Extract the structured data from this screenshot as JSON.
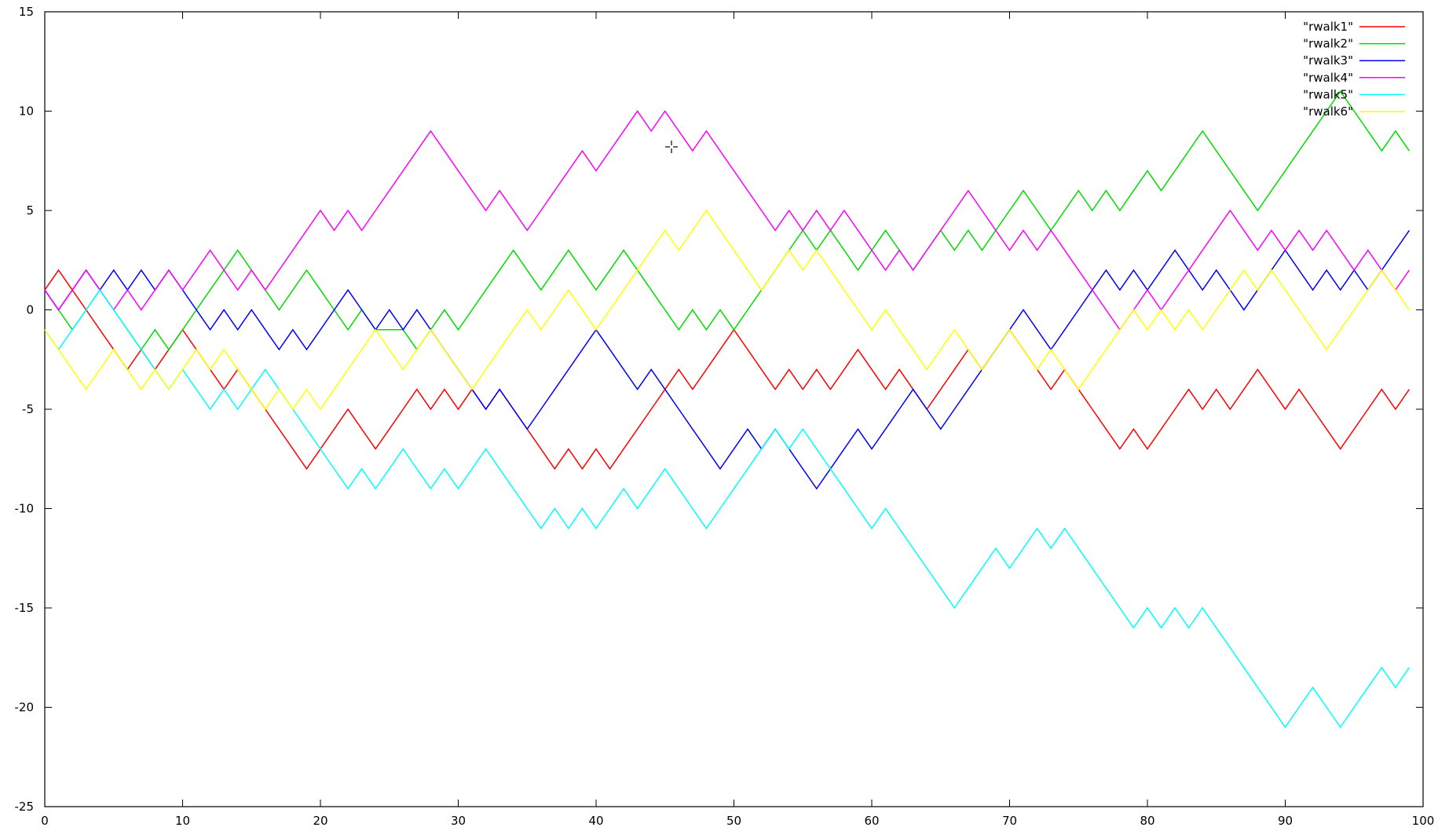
{
  "chart_data": {
    "type": "line",
    "title": "",
    "xlabel": "",
    "ylabel": "",
    "xlim": [
      0,
      100
    ],
    "ylim": [
      -25,
      15
    ],
    "xticks": [
      0,
      10,
      20,
      30,
      40,
      50,
      60,
      70,
      80,
      90,
      100
    ],
    "yticks": [
      -25,
      -20,
      -15,
      -10,
      -5,
      0,
      5,
      10,
      15
    ],
    "grid": false,
    "legend_position": "top-right",
    "x": [
      0,
      1,
      2,
      3,
      4,
      5,
      6,
      7,
      8,
      9,
      10,
      11,
      12,
      13,
      14,
      15,
      16,
      17,
      18,
      19,
      20,
      21,
      22,
      23,
      24,
      25,
      26,
      27,
      28,
      29,
      30,
      31,
      32,
      33,
      34,
      35,
      36,
      37,
      38,
      39,
      40,
      41,
      42,
      43,
      44,
      45,
      46,
      47,
      48,
      49,
      50,
      51,
      52,
      53,
      54,
      55,
      56,
      57,
      58,
      59,
      60,
      61,
      62,
      63,
      64,
      65,
      66,
      67,
      68,
      69,
      70,
      71,
      72,
      73,
      74,
      75,
      76,
      77,
      78,
      79,
      80,
      81,
      82,
      83,
      84,
      85,
      86,
      87,
      88,
      89,
      90,
      91,
      92,
      93,
      94,
      95,
      96,
      97,
      98,
      99
    ],
    "series": [
      {
        "name": "\"rwalk1\"",
        "color": "#ff0000",
        "values": [
          1,
          2,
          1,
          0,
          -1,
          -2,
          -3,
          -2,
          -3,
          -2,
          -1,
          -2,
          -3,
          -4,
          -3,
          -4,
          -5,
          -6,
          -7,
          -8,
          -7,
          -6,
          -5,
          -6,
          -7,
          -6,
          -5,
          -4,
          -5,
          -4,
          -5,
          -4,
          -5,
          -4,
          -5,
          -6,
          -7,
          -8,
          -7,
          -8,
          -7,
          -8,
          -7,
          -6,
          -5,
          -4,
          -3,
          -4,
          -3,
          -2,
          -1,
          -2,
          -3,
          -4,
          -3,
          -4,
          -3,
          -4,
          -3,
          -2,
          -3,
          -4,
          -3,
          -4,
          -5,
          -4,
          -3,
          -2,
          -3,
          -2,
          -1,
          -2,
          -3,
          -4,
          -3,
          -4,
          -5,
          -6,
          -7,
          -6,
          -7,
          -6,
          -5,
          -4,
          -5,
          -4,
          -5,
          -4,
          -3,
          -4,
          -5,
          -4,
          -5,
          -6,
          -7,
          -6,
          -5,
          -4,
          -5,
          -4
        ]
      },
      {
        "name": "\"rwalk2\"",
        "color": "#00dd00",
        "values": [
          1,
          0,
          -1,
          0,
          1,
          0,
          -1,
          -2,
          -1,
          -2,
          -1,
          0,
          1,
          2,
          3,
          2,
          1,
          0,
          1,
          2,
          1,
          0,
          -1,
          0,
          -1,
          -1,
          -1,
          -2,
          -1,
          0,
          -1,
          0,
          1,
          2,
          3,
          2,
          1,
          2,
          3,
          2,
          1,
          2,
          3,
          2,
          1,
          0,
          -1,
          0,
          -1,
          0,
          -1,
          0,
          1,
          2,
          3,
          4,
          3,
          4,
          3,
          2,
          3,
          4,
          3,
          2,
          3,
          4,
          3,
          4,
          3,
          4,
          5,
          6,
          5,
          4,
          5,
          6,
          5,
          6,
          5,
          6,
          7,
          6,
          7,
          8,
          9,
          8,
          7,
          6,
          5,
          6,
          7,
          8,
          9,
          10,
          11,
          10,
          9,
          8,
          9,
          8
        ]
      },
      {
        "name": "\"rwalk3\"",
        "color": "#0000ff",
        "values": [
          1,
          0,
          1,
          2,
          1,
          2,
          1,
          2,
          1,
          2,
          1,
          0,
          -1,
          0,
          -1,
          0,
          -1,
          -2,
          -1,
          -2,
          -1,
          0,
          1,
          0,
          -1,
          0,
          -1,
          0,
          -1,
          -2,
          -3,
          -4,
          -5,
          -4,
          -5,
          -6,
          -5,
          -4,
          -3,
          -2,
          -1,
          -2,
          -3,
          -4,
          -3,
          -4,
          -5,
          -6,
          -7,
          -8,
          -7,
          -6,
          -7,
          -6,
          -7,
          -8,
          -9,
          -8,
          -7,
          -6,
          -7,
          -6,
          -5,
          -4,
          -5,
          -6,
          -5,
          -4,
          -3,
          -2,
          -1,
          0,
          -1,
          -2,
          -1,
          0,
          1,
          2,
          1,
          2,
          1,
          2,
          3,
          2,
          1,
          2,
          1,
          0,
          1,
          2,
          3,
          2,
          1,
          2,
          1,
          2,
          1,
          2,
          3,
          4
        ]
      },
      {
        "name": "\"rwalk4\"",
        "color": "#ff00ff",
        "values": [
          1,
          0,
          1,
          2,
          1,
          0,
          1,
          0,
          1,
          2,
          1,
          2,
          3,
          2,
          1,
          2,
          1,
          2,
          3,
          4,
          5,
          4,
          5,
          4,
          5,
          6,
          7,
          8,
          9,
          8,
          7,
          6,
          5,
          6,
          5,
          4,
          5,
          6,
          7,
          8,
          7,
          8,
          9,
          10,
          9,
          10,
          9,
          8,
          9,
          8,
          7,
          6,
          5,
          4,
          5,
          4,
          5,
          4,
          5,
          4,
          3,
          2,
          3,
          2,
          3,
          4,
          5,
          6,
          5,
          4,
          3,
          4,
          3,
          4,
          3,
          2,
          1,
          0,
          -1,
          0,
          1,
          0,
          1,
          2,
          3,
          4,
          5,
          4,
          3,
          4,
          3,
          4,
          3,
          4,
          3,
          2,
          3,
          2,
          1,
          2
        ]
      },
      {
        "name": "\"rwalk5\"",
        "color": "#00ffff",
        "values": [
          -1,
          -2,
          -1,
          0,
          1,
          0,
          -1,
          -2,
          -3,
          -4,
          -3,
          -4,
          -5,
          -4,
          -5,
          -4,
          -3,
          -4,
          -5,
          -6,
          -7,
          -8,
          -9,
          -8,
          -9,
          -8,
          -7,
          -8,
          -9,
          -8,
          -9,
          -8,
          -7,
          -8,
          -9,
          -10,
          -11,
          -10,
          -11,
          -10,
          -11,
          -10,
          -9,
          -10,
          -9,
          -8,
          -9,
          -10,
          -11,
          -10,
          -9,
          -8,
          -7,
          -6,
          -7,
          -6,
          -7,
          -8,
          -9,
          -10,
          -11,
          -10,
          -11,
          -12,
          -13,
          -14,
          -15,
          -14,
          -13,
          -12,
          -13,
          -12,
          -11,
          -12,
          -11,
          -12,
          -13,
          -14,
          -15,
          -16,
          -15,
          -16,
          -15,
          -16,
          -15,
          -16,
          -17,
          -18,
          -19,
          -20,
          -21,
          -20,
          -19,
          -20,
          -21,
          -20,
          -19,
          -18,
          -19,
          -18
        ]
      },
      {
        "name": "\"rwalk6\"",
        "color": "#ffff00",
        "values": [
          -1,
          -2,
          -3,
          -4,
          -3,
          -2,
          -3,
          -4,
          -3,
          -4,
          -3,
          -2,
          -3,
          -2,
          -3,
          -4,
          -5,
          -4,
          -5,
          -4,
          -5,
          -4,
          -3,
          -2,
          -1,
          -2,
          -3,
          -2,
          -1,
          -2,
          -3,
          -4,
          -3,
          -2,
          -1,
          0,
          -1,
          0,
          1,
          0,
          -1,
          0,
          1,
          2,
          3,
          4,
          3,
          4,
          5,
          4,
          3,
          2,
          1,
          2,
          3,
          2,
          3,
          2,
          1,
          0,
          -1,
          0,
          -1,
          -2,
          -3,
          -2,
          -1,
          -2,
          -3,
          -2,
          -1,
          -2,
          -3,
          -2,
          -3,
          -4,
          -3,
          -2,
          -1,
          0,
          -1,
          0,
          -1,
          0,
          -1,
          0,
          1,
          2,
          1,
          2,
          1,
          0,
          -1,
          -2,
          -1,
          0,
          1,
          2,
          1,
          0
        ]
      }
    ]
  }
}
